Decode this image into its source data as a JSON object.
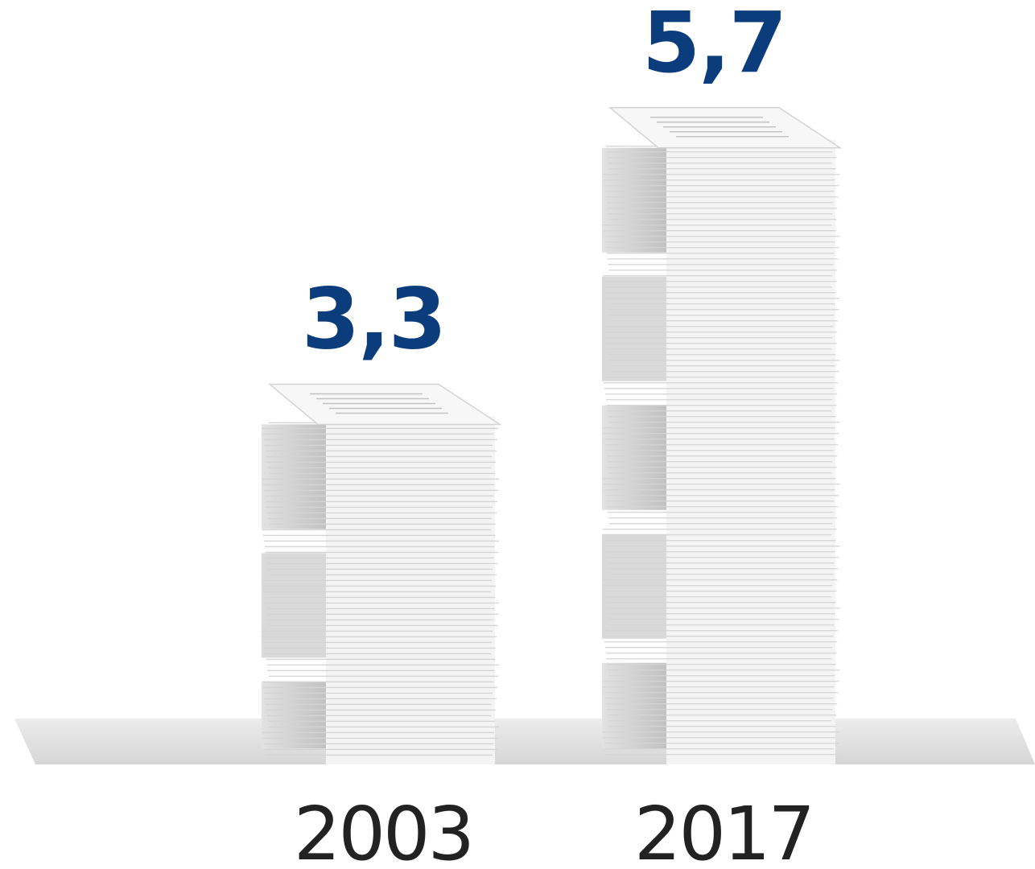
{
  "chart_data": {
    "type": "bar",
    "categories": [
      "2003",
      "2017"
    ],
    "values": [
      3.3,
      5.7
    ],
    "value_labels": [
      "3,3",
      "5,7"
    ],
    "title": "",
    "xlabel": "",
    "ylabel": "",
    "ylim": [
      0,
      6.5
    ],
    "grid": false,
    "legend": "none"
  },
  "colors": {
    "value_label": "#0b3c7c",
    "year_label": "#222222",
    "paper": "#f4f4f4",
    "paper_edge": "#d4d4d4",
    "paper_shadow": "#c9c9c9",
    "floor": "#dedede"
  }
}
